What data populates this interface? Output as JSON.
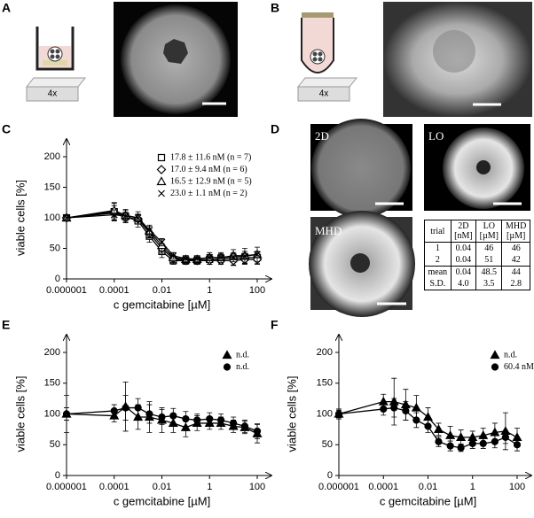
{
  "panel_labels": [
    "A",
    "B",
    "C",
    "D",
    "E",
    "F"
  ],
  "illustration_labels": [
    "4x",
    "4x"
  ],
  "image_labels": [
    "2D",
    "LO",
    "MHD"
  ],
  "table": {
    "header": [
      [
        "trial"
      ],
      [
        "2D",
        "[nM]"
      ],
      [
        "LO",
        "[µM]"
      ],
      [
        "MHD",
        "[µM]"
      ]
    ],
    "rows": [
      [
        "1",
        "0.04",
        "46",
        "46"
      ],
      [
        "2",
        "0.04",
        "51",
        "42"
      ],
      [
        "mean",
        "0.04",
        "48.5",
        "44"
      ],
      [
        "S.D.",
        "4.0",
        "3.5",
        "2.8"
      ]
    ]
  },
  "chart_data": [
    {
      "type": "line",
      "xlabel": "c gemcitabine [µM]",
      "ylabel": "viable cells [%]",
      "xscale": "log",
      "x": [
        1e-06,
        0.0001,
        0.0003,
        0.001,
        0.003,
        0.01,
        0.03,
        0.1,
        0.3,
        1,
        3,
        10,
        30,
        100
      ],
      "xlim": [
        1e-06,
        100
      ],
      "xticks": [
        1e-06,
        0.0001,
        0.01,
        1,
        100
      ],
      "ylim": [
        0,
        200
      ],
      "yticks": [
        0,
        50,
        100,
        150,
        200
      ],
      "series": [
        {
          "name": "17.8 ± 11.6 nM (n = 7)",
          "marker": "square",
          "color": "#000000",
          "filled": false,
          "values": [
            100,
            110,
            102,
            95,
            70,
            45,
            30,
            30,
            30,
            32,
            33,
            33,
            35,
            35
          ],
          "errors": [
            5,
            15,
            10,
            10,
            10,
            10,
            6,
            6,
            6,
            8,
            8,
            10,
            10,
            10
          ]
        },
        {
          "name": "17.0 ± 9.4 nM (n = 6)",
          "marker": "diamond",
          "color": "#000000",
          "filled": false,
          "values": [
            100,
            108,
            100,
            98,
            75,
            50,
            33,
            30,
            30,
            30,
            30,
            30,
            32,
            32
          ],
          "errors": [
            5,
            12,
            8,
            8,
            8,
            8,
            6,
            6,
            6,
            6,
            6,
            8,
            8,
            8
          ]
        },
        {
          "name": "16.5 ± 12.9 nM (n = 5)",
          "marker": "triangle",
          "color": "#000000",
          "filled": false,
          "values": [
            100,
            112,
            104,
            100,
            78,
            55,
            35,
            32,
            32,
            35,
            35,
            38,
            38,
            40
          ],
          "errors": [
            5,
            12,
            10,
            10,
            10,
            10,
            8,
            6,
            6,
            8,
            8,
            10,
            12,
            12
          ]
        },
        {
          "name": "23.0 ± 1.1 nM (n = 2)",
          "marker": "x",
          "color": "#000000",
          "filled": false,
          "values": [
            100,
            105,
            103,
            100,
            80,
            60,
            38,
            33,
            33,
            35,
            35,
            36,
            37,
            40
          ],
          "errors": [
            4,
            8,
            6,
            6,
            6,
            6,
            5,
            5,
            5,
            5,
            5,
            5,
            5,
            5
          ]
        }
      ]
    },
    {
      "type": "line",
      "xlabel": "c gemcitabine [µM]",
      "ylabel": "viable cells [%]",
      "xscale": "log",
      "x": [
        1e-06,
        0.0001,
        0.0003,
        0.001,
        0.003,
        0.01,
        0.03,
        0.1,
        0.3,
        1,
        3,
        10,
        30,
        100
      ],
      "xlim": [
        1e-06,
        100
      ],
      "xticks": [
        1e-06,
        0.0001,
        0.01,
        1,
        100
      ],
      "ylim": [
        0,
        200
      ],
      "yticks": [
        0,
        50,
        100,
        150,
        200
      ],
      "series": [
        {
          "name": "n.d.",
          "marker": "triangle",
          "color": "#000000",
          "filled": true,
          "values": [
            100,
            97,
            112,
            95,
            95,
            90,
            85,
            78,
            85,
            85,
            85,
            80,
            78,
            68
          ],
          "errors": [
            30,
            10,
            40,
            20,
            25,
            20,
            15,
            15,
            12,
            10,
            10,
            10,
            10,
            15
          ]
        },
        {
          "name": "n.d.",
          "marker": "circle",
          "color": "#000000",
          "filled": true,
          "values": [
            100,
            105,
            110,
            110,
            100,
            95,
            97,
            92,
            90,
            92,
            90,
            85,
            80,
            72
          ],
          "errors": [
            10,
            10,
            20,
            15,
            15,
            12,
            12,
            12,
            10,
            10,
            10,
            10,
            10,
            12
          ]
        }
      ]
    },
    {
      "type": "line",
      "xlabel": "c gemcitabine [µM]",
      "ylabel": "viable cells [%]",
      "xscale": "log",
      "x": [
        1e-06,
        0.0001,
        0.0003,
        0.001,
        0.003,
        0.01,
        0.03,
        0.1,
        0.3,
        1,
        3,
        10,
        30,
        100
      ],
      "xlim": [
        1e-06,
        100
      ],
      "xticks": [
        1e-06,
        0.0001,
        0.01,
        1,
        100
      ],
      "ylim": [
        0,
        200
      ],
      "yticks": [
        0,
        50,
        100,
        150,
        200
      ],
      "series": [
        {
          "name": "n.d.",
          "marker": "triangle",
          "color": "#000000",
          "filled": true,
          "values": [
            100,
            120,
            120,
            115,
            110,
            95,
            75,
            65,
            62,
            62,
            65,
            70,
            72,
            62
          ],
          "errors": [
            8,
            12,
            38,
            25,
            20,
            15,
            10,
            15,
            12,
            10,
            12,
            15,
            30,
            15
          ]
        },
        {
          "name": "60.4 nM",
          "marker": "circle",
          "color": "#000000",
          "filled": true,
          "values": [
            100,
            108,
            110,
            105,
            90,
            80,
            55,
            48,
            45,
            52,
            52,
            55,
            62,
            50
          ],
          "errors": [
            6,
            10,
            15,
            15,
            12,
            10,
            8,
            8,
            6,
            8,
            8,
            10,
            10,
            10
          ]
        }
      ]
    }
  ]
}
